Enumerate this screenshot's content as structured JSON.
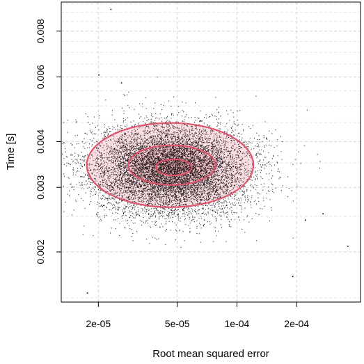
{
  "chart_data": {
    "type": "scatter",
    "xlabel": "Root mean squared error",
    "ylabel": "Time [s]",
    "x_scale": "log",
    "y_scale": "log",
    "xlim": [
      1.3e-05,
      0.00042
    ],
    "ylim": [
      0.00146,
      0.0096
    ],
    "x_ticks": [
      {
        "value": 2e-05,
        "label": "2e-05"
      },
      {
        "value": 5e-05,
        "label": "5e-05"
      },
      {
        "value": 0.0001,
        "label": "1e-04"
      },
      {
        "value": 0.0002,
        "label": "2e-04"
      }
    ],
    "y_ticks": [
      {
        "value": 0.002,
        "label": "0.002"
      },
      {
        "value": 0.003,
        "label": "0.003"
      },
      {
        "value": 0.004,
        "label": "0.004"
      },
      {
        "value": 0.006,
        "label": "0.006"
      },
      {
        "value": 0.008,
        "label": "0.008"
      }
    ],
    "grid": true,
    "point_cloud": {
      "n_points": 9000,
      "center": [
        4.6e-05,
        0.00335
      ],
      "log10_sd": [
        0.2,
        0.062
      ],
      "color": "#000000"
    },
    "outlier_points": [
      {
        "x": 2.3e-05,
        "y": 0.0092
      },
      {
        "x": 1.75e-05,
        "y": 0.00155
      },
      {
        "x": 0.00019,
        "y": 0.00172
      },
      {
        "x": 0.00036,
        "y": 0.00208
      },
      {
        "x": 0.00022,
        "y": 0.00245
      },
      {
        "x": 0.00027,
        "y": 0.00255
      },
      {
        "x": 0.00014,
        "y": 0.0041
      },
      {
        "x": 2.6e-05,
        "y": 0.0058
      },
      {
        "x": 2e-05,
        "y": 0.0061
      }
    ],
    "contours": [
      {
        "level": "outer",
        "center": [
          4.6e-05,
          0.00345
        ],
        "half_width_log10": [
          0.42,
          0.115
        ],
        "fill": "#f7c6cf",
        "fill_opacity": 0.6,
        "stroke": "#df536b"
      },
      {
        "level": "middle",
        "center": [
          4.7e-05,
          0.00345
        ],
        "half_width_log10": [
          0.22,
          0.054
        ],
        "fill": "#d1495b",
        "fill_opacity": 0.18,
        "stroke": "#df536b"
      },
      {
        "level": "inner",
        "center": [
          4.8e-05,
          0.0034
        ],
        "half_width_log10": [
          0.09,
          0.022
        ],
        "fill": "#d1495b",
        "fill_opacity": 0.2,
        "stroke": "#df536b"
      }
    ]
  }
}
